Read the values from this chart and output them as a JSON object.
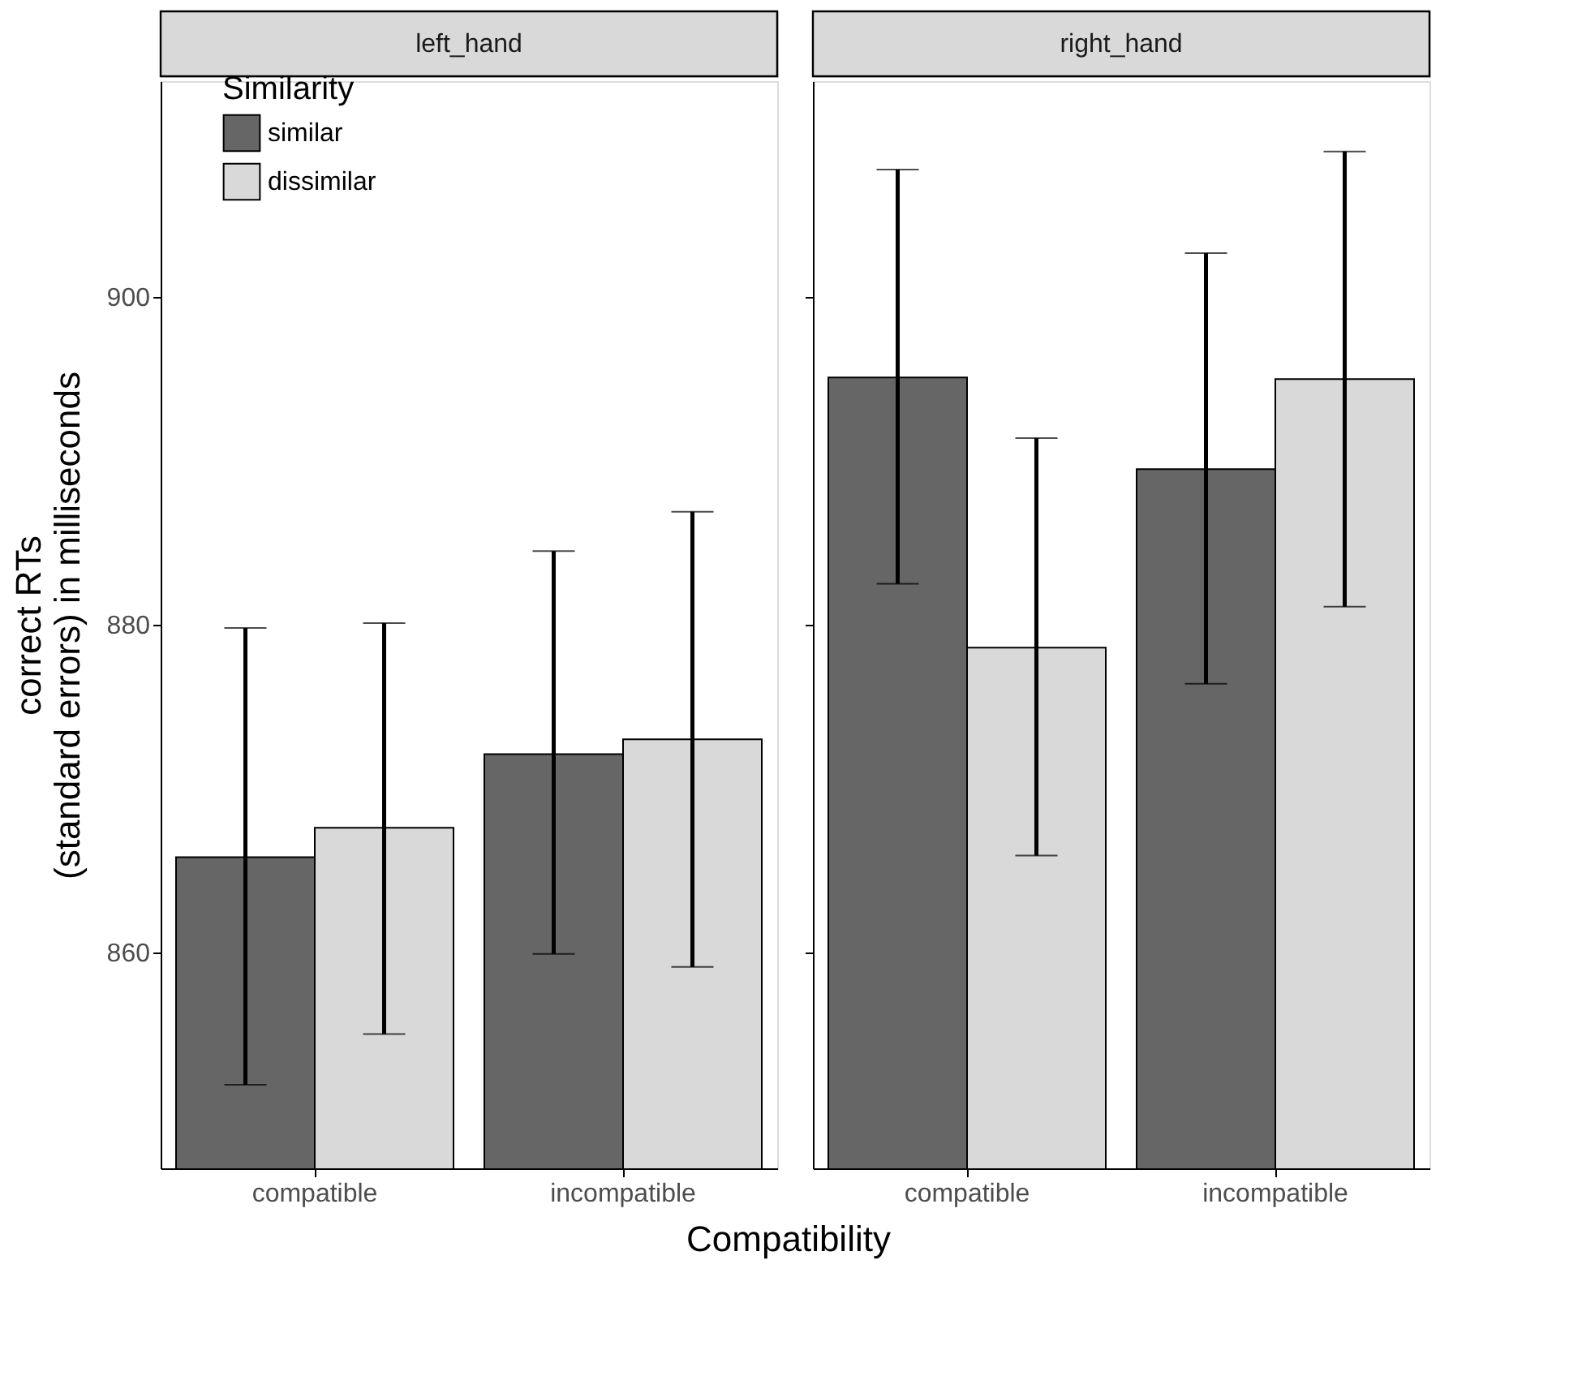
{
  "chart_data": [
    {
      "type": "bar",
      "title": "left_hand",
      "xlabel": "Compatibility",
      "ylabel": "correct RTs\n(standard errors) in milliseconds",
      "legend_title": "Similarity",
      "legend": "top left",
      "grid": false,
      "categories": [
        "compatible",
        "incompatible"
      ],
      "ylim": [
        846.8,
        913.2
      ],
      "yticks": [
        860,
        880,
        900
      ],
      "series": [
        {
          "name": "similar",
          "color": "#666666",
          "values": [
            865.8,
            872.1
          ],
          "errors": [
            [
              851.9,
              879.8
            ],
            [
              859.9,
              884.5
            ]
          ]
        },
        {
          "name": "dissimilar",
          "color": "#d9d9d9",
          "values": [
            867.6,
            873.0
          ],
          "errors": [
            [
              855.0,
              880.1
            ],
            [
              859.1,
              886.9
            ]
          ]
        }
      ]
    },
    {
      "type": "bar",
      "title": "right_hand",
      "grid": false,
      "tick_labels": "x",
      "legend": false,
      "categories": [
        "compatible",
        "incompatible"
      ],
      "ylim": [
        846.8,
        913.2
      ],
      "yticks": [
        860,
        880,
        900
      ],
      "series": [
        {
          "name": "similar",
          "color": "#666666",
          "values": [
            895.1,
            889.5
          ],
          "errors": [
            [
              882.5,
              907.8
            ],
            [
              876.4,
              902.7
            ]
          ]
        },
        {
          "name": "dissimilar",
          "color": "#d9d9d9",
          "values": [
            878.6,
            895.0
          ],
          "errors": [
            [
              865.9,
              891.4
            ],
            [
              881.1,
              908.9
            ]
          ]
        }
      ]
    }
  ]
}
